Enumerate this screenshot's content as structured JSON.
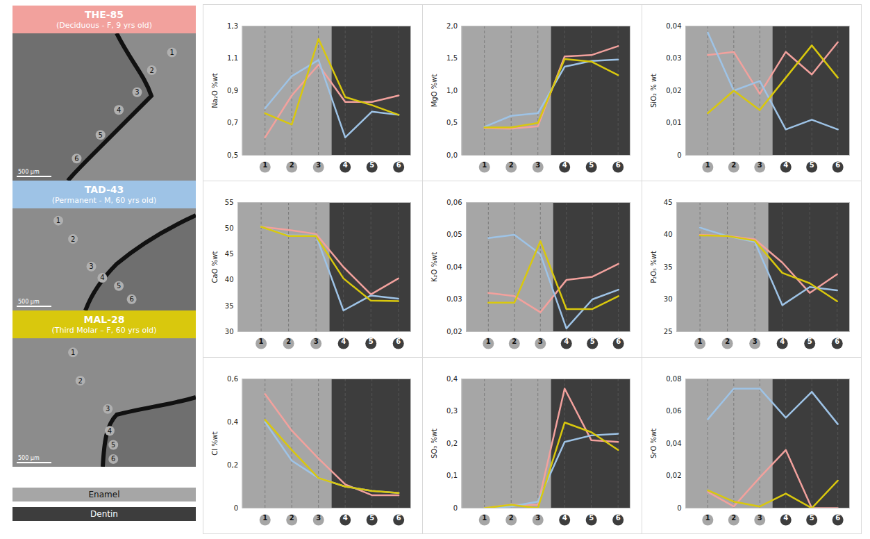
{
  "samples": [
    {
      "name": "THE-85",
      "description": "(Deciduous - F, 9 yrs old)",
      "color": "#f2a19d",
      "image_points": [
        "1",
        "2",
        "3",
        "4",
        "5",
        "6"
      ],
      "scale_bar": "500 µm"
    },
    {
      "name": "TAD-43",
      "description": "(Permanent - M, 60 yrs old)",
      "color": "#9ec3e6",
      "image_points": [
        "1",
        "2",
        "3",
        "4",
        "5",
        "6"
      ],
      "scale_bar": "500 µm"
    },
    {
      "name": "MAL-28",
      "description": "(Third Molar – F, 60 yrs old)",
      "color": "#d9c80d",
      "image_points": [
        "1",
        "2",
        "3",
        "4",
        "5",
        "6"
      ],
      "scale_bar": "500 µm"
    }
  ],
  "zones": [
    {
      "name": "Enamel",
      "color": "#a6a6a6",
      "points": [
        1,
        2,
        3
      ]
    },
    {
      "name": "Dentin",
      "color": "#3d3d3d",
      "points": [
        4,
        5,
        6
      ]
    }
  ],
  "chart_data": [
    {
      "type": "line",
      "ylabel": "Na₂O %wt",
      "x": [
        1,
        2,
        3,
        4,
        5,
        6
      ],
      "xlim": [
        0.15,
        6.45
      ],
      "xticks": [
        1,
        2,
        3,
        4,
        5,
        6
      ],
      "ylim": [
        0.5,
        1.3
      ],
      "yticks": [
        {
          "value": 0.5,
          "label": "0,5"
        },
        {
          "value": 0.7,
          "label": "0,7"
        },
        {
          "value": 0.9,
          "label": "0,9"
        },
        {
          "value": 1.1,
          "label": "1,1"
        },
        {
          "value": 1.3,
          "label": "1,3"
        }
      ],
      "series": [
        {
          "name": "THE-85",
          "color": "#f2a19d",
          "values": [
            0.61,
            0.87,
            1.06,
            0.83,
            0.83,
            0.87
          ]
        },
        {
          "name": "TAD-43",
          "color": "#9ec3e6",
          "values": [
            0.79,
            0.99,
            1.09,
            0.61,
            0.77,
            0.75
          ]
        },
        {
          "name": "MAL-28",
          "color": "#d9c80d",
          "values": [
            0.76,
            0.69,
            1.22,
            0.86,
            0.81,
            0.75
          ]
        }
      ]
    },
    {
      "type": "line",
      "ylabel": "MgO %wt",
      "x": [
        1,
        2,
        3,
        4,
        5,
        6
      ],
      "xlim": [
        0.15,
        6.45
      ],
      "xticks": [
        1,
        2,
        3,
        4,
        5,
        6
      ],
      "ylim": [
        0,
        2
      ],
      "yticks": [
        {
          "value": 0,
          "label": "0,0"
        },
        {
          "value": 0.5,
          "label": "0,5"
        },
        {
          "value": 1,
          "label": "1,0"
        },
        {
          "value": 1.5,
          "label": "1,5"
        },
        {
          "value": 2,
          "label": "2,0"
        }
      ],
      "series": [
        {
          "name": "THE-85",
          "color": "#f2a19d",
          "values": [
            0.42,
            0.41,
            0.45,
            1.53,
            1.55,
            1.69
          ]
        },
        {
          "name": "TAD-43",
          "color": "#9ec3e6",
          "values": [
            0.44,
            0.61,
            0.65,
            1.37,
            1.46,
            1.48
          ]
        },
        {
          "name": "MAL-28",
          "color": "#d9c80d",
          "values": [
            0.43,
            0.43,
            0.5,
            1.49,
            1.45,
            1.24
          ]
        }
      ]
    },
    {
      "type": "line",
      "ylabel": "SiO₂ % wt",
      "x": [
        1,
        2,
        3,
        4,
        5,
        6
      ],
      "xlim": [
        0.15,
        6.45
      ],
      "xticks": [
        1,
        2,
        3,
        4,
        5,
        6
      ],
      "ylim": [
        0,
        0.04
      ],
      "yticks": [
        0,
        {
          "value": 0.01,
          "label": "0,01"
        },
        {
          "value": 0.02,
          "label": "0,02"
        },
        {
          "value": 0.03,
          "label": "0,03"
        },
        {
          "value": 0.04,
          "label": "0,04"
        }
      ],
      "series": [
        {
          "name": "THE-85",
          "color": "#f2a19d",
          "values": [
            0.031,
            0.032,
            0.019,
            0.032,
            0.025,
            0.035
          ]
        },
        {
          "name": "TAD-43",
          "color": "#9ec3e6",
          "values": [
            0.038,
            0.02,
            0.023,
            0.008,
            0.011,
            0.008
          ]
        },
        {
          "name": "MAL-28",
          "color": "#d9c80d",
          "values": [
            0.013,
            0.02,
            0.014,
            0.024,
            0.034,
            0.024
          ]
        }
      ]
    },
    {
      "type": "line",
      "ylabel": "CaO %wt",
      "x": [
        1,
        2,
        3,
        4,
        5,
        6
      ],
      "xlim": [
        0.15,
        6.45
      ],
      "xticks": [
        1,
        2,
        3,
        4,
        5,
        6
      ],
      "ylim": [
        30,
        55
      ],
      "yticks": [
        30,
        35,
        40,
        45,
        50,
        55
      ],
      "series": [
        {
          "name": "THE-85",
          "color": "#f2a19d",
          "values": [
            50.3,
            49.7,
            48.9,
            42.5,
            37.2,
            40.3
          ]
        },
        {
          "name": "TAD-43",
          "color": "#9ec3e6",
          "values": [
            50.3,
            48.6,
            48.6,
            34.1,
            37.0,
            36.4
          ]
        },
        {
          "name": "MAL-28",
          "color": "#d9c80d",
          "values": [
            50.3,
            48.5,
            48.5,
            40.3,
            36.0,
            35.9
          ]
        }
      ]
    },
    {
      "type": "line",
      "ylabel": "K₂O %wt",
      "x": [
        1,
        2,
        3,
        4,
        5,
        6
      ],
      "xlim": [
        0.15,
        6.45
      ],
      "xticks": [
        1,
        2,
        3,
        4,
        5,
        6
      ],
      "ylim": [
        0.02,
        0.06
      ],
      "yticks": [
        {
          "value": 0.02,
          "label": "0,02"
        },
        {
          "value": 0.03,
          "label": "0,03"
        },
        {
          "value": 0.04,
          "label": "0,04"
        },
        {
          "value": 0.05,
          "label": "0,05"
        },
        {
          "value": 0.06,
          "label": "0,06"
        }
      ],
      "series": [
        {
          "name": "THE-85",
          "color": "#f2a19d",
          "values": [
            0.032,
            0.031,
            0.026,
            0.036,
            0.037,
            0.041
          ]
        },
        {
          "name": "TAD-43",
          "color": "#9ec3e6",
          "values": [
            0.049,
            0.05,
            0.044,
            0.021,
            0.03,
            0.033
          ]
        },
        {
          "name": "MAL-28",
          "color": "#d9c80d",
          "values": [
            0.029,
            0.029,
            0.048,
            0.027,
            0.027,
            0.031
          ]
        }
      ]
    },
    {
      "type": "line",
      "ylabel": "P₂O₅ %wt",
      "x": [
        1,
        2,
        3,
        4,
        5,
        6
      ],
      "xlim": [
        0.15,
        6.45
      ],
      "xticks": [
        1,
        2,
        3,
        4,
        5,
        6
      ],
      "ylim": [
        25,
        45
      ],
      "yticks": [
        25,
        30,
        35,
        40,
        45
      ],
      "series": [
        {
          "name": "THE-85",
          "color": "#f2a19d",
          "values": [
            40.0,
            39.8,
            39.3,
            35.7,
            31.0,
            33.9
          ]
        },
        {
          "name": "TAD-43",
          "color": "#9ec3e6",
          "values": [
            41.1,
            39.8,
            38.9,
            29.1,
            31.9,
            31.4
          ]
        },
        {
          "name": "MAL-28",
          "color": "#d9c80d",
          "values": [
            39.9,
            39.8,
            39.1,
            34.1,
            32.5,
            29.7
          ]
        }
      ]
    },
    {
      "type": "line",
      "ylabel": "Cl %wt",
      "x": [
        1,
        2,
        3,
        4,
        5,
        6
      ],
      "xlim": [
        0.15,
        6.45
      ],
      "xticks": [
        1,
        2,
        3,
        4,
        5,
        6
      ],
      "ylim": [
        0,
        0.6
      ],
      "yticks": [
        0,
        {
          "value": 0.2,
          "label": "0,2"
        },
        {
          "value": 0.4,
          "label": "0,4"
        },
        {
          "value": 0.6,
          "label": "0,6"
        }
      ],
      "series": [
        {
          "name": "THE-85",
          "color": "#f2a19d",
          "values": [
            0.53,
            0.36,
            0.23,
            0.11,
            0.06,
            0.06
          ]
        },
        {
          "name": "TAD-43",
          "color": "#9ec3e6",
          "values": [
            0.4,
            0.22,
            0.14,
            0.1,
            0.08,
            0.07
          ]
        },
        {
          "name": "MAL-28",
          "color": "#d9c80d",
          "values": [
            0.41,
            0.27,
            0.14,
            0.1,
            0.08,
            0.07
          ]
        }
      ]
    },
    {
      "type": "line",
      "ylabel": "SO₃ %wt",
      "x": [
        1,
        2,
        3,
        4,
        5,
        6
      ],
      "xlim": [
        0.15,
        6.45
      ],
      "xticks": [
        1,
        2,
        3,
        4,
        5,
        6
      ],
      "ylim": [
        0,
        0.4
      ],
      "yticks": [
        0,
        {
          "value": 0.1,
          "label": "0,1"
        },
        {
          "value": 0.2,
          "label": "0,2"
        },
        {
          "value": 0.3,
          "label": "0,3"
        },
        {
          "value": 0.4,
          "label": "0,4"
        }
      ],
      "series": [
        {
          "name": "THE-85",
          "color": "#f2a19d",
          "values": [
            0.0,
            0.01,
            0.01,
            0.37,
            0.21,
            0.205
          ]
        },
        {
          "name": "TAD-43",
          "color": "#9ec3e6",
          "values": [
            0.0,
            0.005,
            0.02,
            0.205,
            0.225,
            0.23
          ]
        },
        {
          "name": "MAL-28",
          "color": "#d9c80d",
          "values": [
            0.0,
            0.01,
            0.0,
            0.265,
            0.235,
            0.18
          ]
        }
      ]
    },
    {
      "type": "line",
      "ylabel": "SrO %wt",
      "x": [
        1,
        2,
        3,
        4,
        5,
        6
      ],
      "xlim": [
        0.15,
        6.45
      ],
      "xticks": [
        1,
        2,
        3,
        4,
        5,
        6
      ],
      "ylim": [
        0,
        0.08
      ],
      "yticks": [
        0,
        {
          "value": 0.02,
          "label": "0,02"
        },
        {
          "value": 0.04,
          "label": "0,04"
        },
        {
          "value": 0.06,
          "label": "0,06"
        },
        {
          "value": 0.08,
          "label": "0,08"
        }
      ],
      "series": [
        {
          "name": "THE-85",
          "color": "#f2a19d",
          "values": [
            0.01,
            0.001,
            0.019,
            0.036,
            0.0,
            0.0
          ]
        },
        {
          "name": "TAD-43",
          "color": "#9ec3e6",
          "values": [
            0.055,
            0.074,
            0.074,
            0.056,
            0.072,
            0.052
          ]
        },
        {
          "name": "MAL-28",
          "color": "#d9c80d",
          "values": [
            0.011,
            0.004,
            0.001,
            0.009,
            0.0,
            0.017
          ]
        }
      ]
    }
  ]
}
